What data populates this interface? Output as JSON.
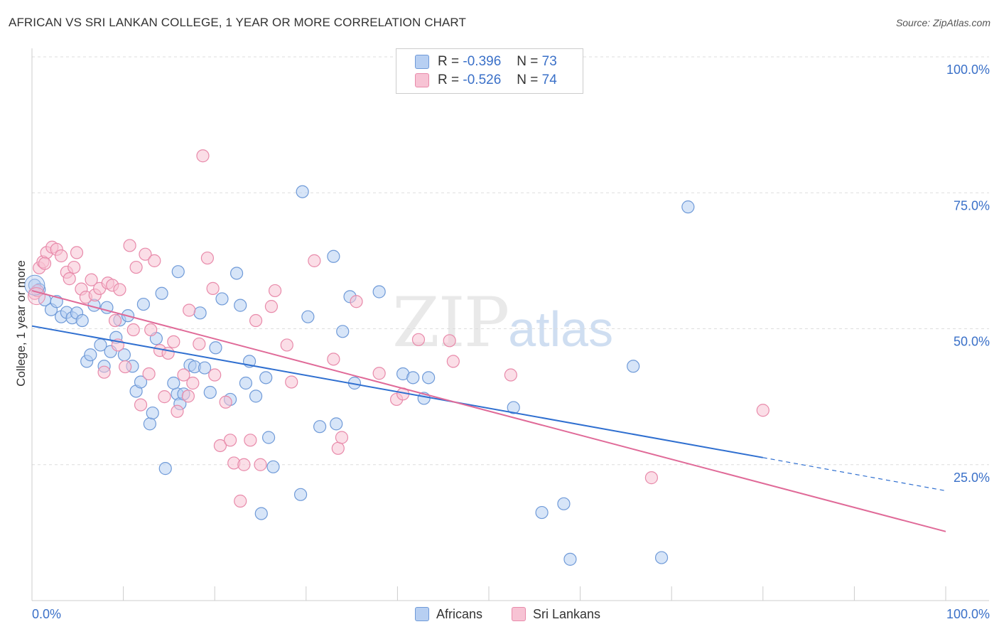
{
  "title": "AFRICAN VS SRI LANKAN COLLEGE, 1 YEAR OR MORE CORRELATION CHART",
  "source": "Source: ZipAtlas.com",
  "watermark": {
    "zip": "ZIP",
    "atlas": "atlas"
  },
  "legend": {
    "r_label": "R =",
    "n_label": "N =",
    "africans": {
      "r": "-0.396",
      "n": "73"
    },
    "sri_lankans": {
      "r": "-0.526",
      "n": "74"
    }
  },
  "colors": {
    "africans_fill": "#b7cff2",
    "africans_stroke": "#6f9ad8",
    "africans_line": "#2f6fd0",
    "sri_lankans_fill": "#f7c3d4",
    "sri_lankans_stroke": "#e88aaa",
    "sri_lankans_line": "#e06a98",
    "tick_label": "#3a70c8",
    "grid": "#dddddd"
  },
  "chart_data": {
    "type": "scatter",
    "xlabel": "",
    "ylabel": "College, 1 year or more",
    "xlim": [
      0,
      100
    ],
    "ylim": [
      0,
      100
    ],
    "x_tick_labels": [
      "0.0%",
      "100.0%"
    ],
    "y_tick_labels": [
      "25.0%",
      "50.0%",
      "75.0%",
      "100.0%"
    ],
    "y_ticks": [
      25,
      50,
      75,
      100
    ],
    "grid": "horizontal dashed",
    "legend_position": "top-center",
    "series": [
      {
        "name": "Africans",
        "points": [
          [
            0.3,
            58.0
          ],
          [
            0.8,
            57.2
          ],
          [
            1.4,
            55.3
          ],
          [
            2.1,
            53.5
          ],
          [
            2.7,
            55.0
          ],
          [
            3.2,
            52.2
          ],
          [
            3.8,
            53.0
          ],
          [
            4.4,
            52.0
          ],
          [
            4.9,
            52.9
          ],
          [
            5.5,
            51.5
          ],
          [
            6.0,
            44.0
          ],
          [
            6.4,
            45.2
          ],
          [
            6.8,
            54.3
          ],
          [
            7.5,
            47.0
          ],
          [
            7.9,
            43.1
          ],
          [
            8.2,
            53.9
          ],
          [
            8.6,
            45.8
          ],
          [
            9.2,
            48.4
          ],
          [
            9.6,
            51.6
          ],
          [
            10.1,
            45.2
          ],
          [
            10.5,
            52.4
          ],
          [
            11.0,
            43.1
          ],
          [
            11.4,
            38.5
          ],
          [
            11.9,
            40.2
          ],
          [
            12.9,
            32.5
          ],
          [
            13.2,
            34.5
          ],
          [
            13.6,
            48.2
          ],
          [
            14.2,
            56.5
          ],
          [
            14.6,
            24.3
          ],
          [
            15.9,
            38.0
          ],
          [
            15.5,
            40.0
          ],
          [
            16.2,
            36.2
          ],
          [
            16.6,
            38.0
          ],
          [
            17.3,
            43.3
          ],
          [
            17.8,
            43.0
          ],
          [
            18.4,
            52.9
          ],
          [
            18.9,
            42.8
          ],
          [
            19.5,
            38.3
          ],
          [
            20.1,
            46.5
          ],
          [
            20.8,
            55.5
          ],
          [
            21.7,
            37.0
          ],
          [
            22.4,
            60.2
          ],
          [
            23.4,
            40.0
          ],
          [
            23.8,
            44.0
          ],
          [
            24.5,
            37.6
          ],
          [
            25.1,
            16.0
          ],
          [
            25.6,
            41.0
          ],
          [
            25.9,
            30.0
          ],
          [
            26.4,
            24.6
          ],
          [
            22.8,
            54.3
          ],
          [
            29.6,
            75.2
          ],
          [
            29.4,
            19.5
          ],
          [
            30.2,
            52.2
          ],
          [
            31.5,
            32.0
          ],
          [
            33.0,
            63.3
          ],
          [
            33.3,
            32.5
          ],
          [
            34.0,
            49.5
          ],
          [
            34.8,
            55.9
          ],
          [
            35.3,
            40.0
          ],
          [
            38.0,
            56.8
          ],
          [
            40.6,
            41.7
          ],
          [
            41.7,
            41.0
          ],
          [
            42.9,
            37.2
          ],
          [
            43.4,
            41.0
          ],
          [
            52.7,
            35.5
          ],
          [
            55.8,
            16.2
          ],
          [
            58.2,
            17.8
          ],
          [
            58.9,
            7.6
          ],
          [
            65.8,
            43.1
          ],
          [
            68.9,
            7.9
          ],
          [
            71.8,
            72.4
          ],
          [
            12.2,
            54.5
          ],
          [
            16.0,
            60.5
          ]
        ]
      },
      {
        "name": "Sri Lankans",
        "points": [
          [
            0.3,
            56.5
          ],
          [
            0.8,
            61.2
          ],
          [
            1.2,
            62.3
          ],
          [
            1.6,
            64.0
          ],
          [
            2.2,
            65.0
          ],
          [
            2.7,
            64.6
          ],
          [
            3.2,
            63.4
          ],
          [
            3.8,
            60.4
          ],
          [
            4.1,
            59.2
          ],
          [
            4.6,
            61.3
          ],
          [
            4.9,
            64.0
          ],
          [
            5.4,
            57.3
          ],
          [
            5.9,
            55.8
          ],
          [
            6.5,
            59.0
          ],
          [
            6.9,
            56.2
          ],
          [
            7.4,
            57.4
          ],
          [
            7.9,
            42.0
          ],
          [
            8.3,
            58.4
          ],
          [
            8.8,
            58.0
          ],
          [
            9.1,
            51.5
          ],
          [
            9.6,
            57.2
          ],
          [
            10.2,
            43.0
          ],
          [
            10.7,
            65.3
          ],
          [
            11.1,
            49.8
          ],
          [
            11.4,
            61.3
          ],
          [
            11.9,
            36.0
          ],
          [
            12.4,
            63.7
          ],
          [
            12.8,
            41.7
          ],
          [
            13.4,
            62.5
          ],
          [
            14.0,
            46.0
          ],
          [
            14.5,
            37.5
          ],
          [
            14.9,
            45.5
          ],
          [
            15.5,
            47.6
          ],
          [
            15.9,
            34.8
          ],
          [
            16.6,
            41.5
          ],
          [
            17.1,
            37.6
          ],
          [
            17.6,
            40.0
          ],
          [
            18.3,
            47.2
          ],
          [
            18.7,
            81.8
          ],
          [
            19.2,
            63.0
          ],
          [
            19.8,
            57.4
          ],
          [
            20.6,
            28.5
          ],
          [
            21.2,
            36.5
          ],
          [
            21.7,
            29.5
          ],
          [
            22.1,
            25.3
          ],
          [
            22.8,
            18.3
          ],
          [
            23.2,
            25.0
          ],
          [
            23.9,
            29.5
          ],
          [
            24.5,
            51.5
          ],
          [
            25.0,
            25.0
          ],
          [
            26.2,
            54.1
          ],
          [
            26.6,
            57.0
          ],
          [
            27.9,
            47.0
          ],
          [
            28.4,
            40.2
          ],
          [
            30.9,
            62.5
          ],
          [
            33.0,
            44.4
          ],
          [
            33.5,
            28.0
          ],
          [
            33.9,
            30.0
          ],
          [
            35.5,
            55.0
          ],
          [
            38.0,
            41.8
          ],
          [
            39.9,
            37.0
          ],
          [
            40.6,
            38.0
          ],
          [
            42.3,
            48.0
          ],
          [
            45.7,
            47.8
          ],
          [
            46.1,
            44.0
          ],
          [
            52.4,
            41.5
          ],
          [
            67.8,
            22.6
          ],
          [
            80.0,
            35.0
          ],
          [
            0.6,
            57.0
          ],
          [
            1.4,
            62.0
          ],
          [
            9.4,
            47.0
          ],
          [
            13.0,
            49.8
          ],
          [
            17.2,
            53.4
          ],
          [
            20.0,
            41.5
          ]
        ]
      }
    ],
    "trend_lines": [
      {
        "name": "Africans",
        "x": [
          0,
          80,
          100
        ],
        "y": [
          50.5,
          26.3,
          20.2
        ],
        "dashed_from_x": 80
      },
      {
        "name": "Sri Lankans",
        "x": [
          0,
          100
        ],
        "y": [
          57.0,
          12.7
        ]
      }
    ]
  }
}
